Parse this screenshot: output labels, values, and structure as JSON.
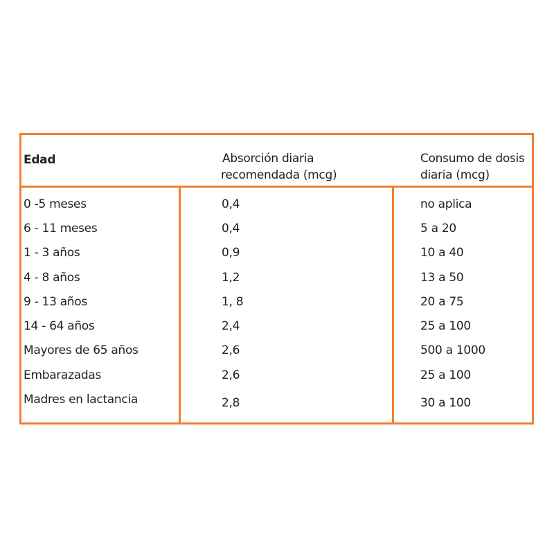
{
  "table": {
    "headers": [
      "Edad",
      "Absorción diaria recomendada (mcg)",
      "Consumo de dosis diaria (mcg)"
    ],
    "header_lines": {
      "col2": [
        "Absorción diaria",
        "recomendada (mcg)"
      ],
      "col3": [
        "Consumo de dosis",
        "diaria (mcg)"
      ]
    },
    "rows": [
      [
        "0 -5 meses",
        "0,4",
        "no aplica"
      ],
      [
        "6 - 11 meses",
        "0,4",
        "5  a 20"
      ],
      [
        "1 - 3 años",
        "0,9",
        "10 a 40"
      ],
      [
        "4 - 8 años",
        "1,2",
        "13 a 50"
      ],
      [
        "9 - 13 años",
        "1, 8",
        "20 a 75"
      ],
      [
        "14 - 64 años",
        "2,4",
        "25 a 100"
      ],
      [
        "Mayores de 65 años",
        "2,6",
        "500 a 1000"
      ],
      [
        "Embarazadas",
        "2,6",
        "25 a 100"
      ],
      [
        "Madres en lactancia",
        "2,8",
        "30 a 100"
      ]
    ],
    "border_color": "#f07f33"
  }
}
